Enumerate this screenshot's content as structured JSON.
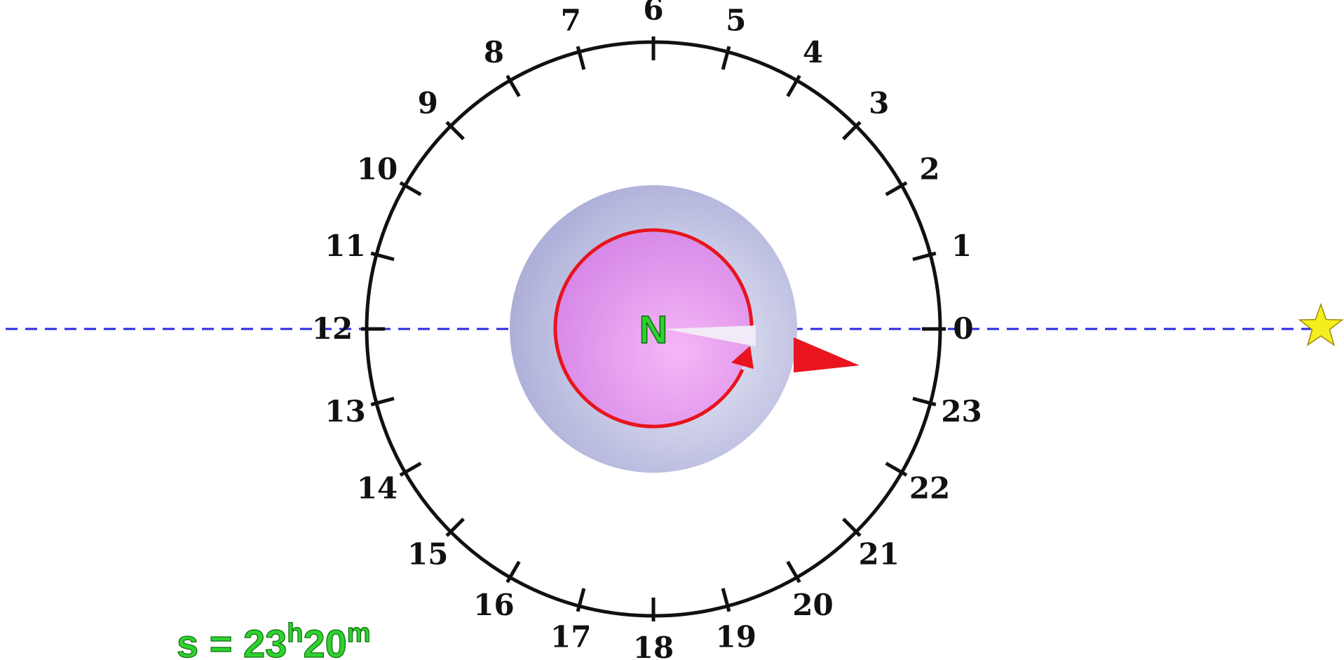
{
  "hour_labels": [
    "0",
    "1",
    "2",
    "3",
    "4",
    "5",
    "6",
    "7",
    "8",
    "9",
    "10",
    "11",
    "12",
    "13",
    "14",
    "15",
    "16",
    "17",
    "18",
    "19",
    "20",
    "21",
    "22",
    "23"
  ],
  "pole_label": "N",
  "sidereal_time": {
    "symbol": "s",
    "equals": "=",
    "hours": "23",
    "hours_unit": "h",
    "minutes": "20",
    "minutes_unit": "m"
  },
  "colors": {
    "dial": "#111111",
    "meridian_line": "#2a2ae0",
    "earth_outer": "#b4b6dc",
    "earth_inner": "#e4a0ee",
    "rotation_arrow": "#e8141e",
    "star": "#f5ee1e",
    "label_green": "#2fd12f"
  },
  "icons": {
    "star": "star-icon",
    "rotation": "rotation-arrow-icon",
    "pointer": "direction-arrow-icon"
  }
}
